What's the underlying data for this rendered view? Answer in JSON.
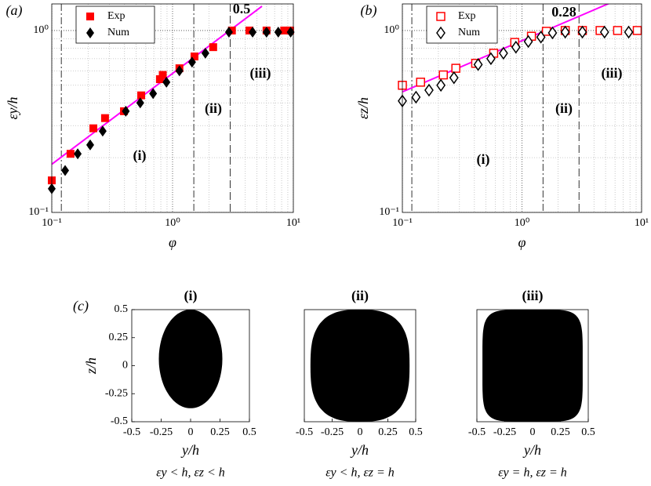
{
  "chart_data": [
    {
      "type": "scatter",
      "panel_label": "(a)",
      "xlabel": "φ",
      "ylabel": "εy/h",
      "xlog": true,
      "ylog": true,
      "grid": true,
      "legend": "upper left",
      "xlim": [
        0.1,
        10
      ],
      "ylim": [
        0.1,
        1.4
      ],
      "xticks": [
        {
          "value": 0.1,
          "label": "10⁻¹"
        },
        {
          "value": 1,
          "label": "10⁰"
        },
        {
          "value": 10,
          "label": "10¹"
        }
      ],
      "yticks": [
        {
          "value": 0.1,
          "label": "10⁻¹"
        },
        {
          "value": 1,
          "label": "10⁰"
        }
      ],
      "xminor": [
        0.2,
        0.3,
        0.4,
        0.5,
        0.6,
        0.7,
        0.8,
        0.9,
        2,
        3,
        4,
        5,
        6,
        7,
        8,
        9
      ],
      "yminor": [
        0.2,
        0.3,
        0.4,
        0.5,
        0.6,
        0.7,
        0.8,
        0.9
      ],
      "series": [
        {
          "name": "Exp",
          "color": "#ff0000",
          "marker": "square",
          "filled": true,
          "x": [
            0.1,
            0.143,
            0.221,
            0.276,
            0.396,
            0.55,
            0.786,
            0.83,
            1.14,
            1.52,
            2.17,
            3.1,
            4.33,
            6.0,
            8.4,
            9.4
          ],
          "values": [
            0.15,
            0.21,
            0.29,
            0.33,
            0.36,
            0.44,
            0.54,
            0.57,
            0.62,
            0.72,
            0.81,
            1.0,
            1.0,
            1.0,
            1.0,
            1.0
          ]
        },
        {
          "name": "Num",
          "color": "#000000",
          "marker": "diamond",
          "filled": true,
          "x": [
            0.1,
            0.129,
            0.164,
            0.208,
            0.264,
            0.41,
            0.54,
            0.69,
            0.89,
            1.14,
            1.45,
            1.87,
            2.93,
            4.6,
            6.0,
            7.5,
            9.5
          ],
          "values": [
            0.135,
            0.17,
            0.21,
            0.235,
            0.28,
            0.36,
            0.4,
            0.45,
            0.52,
            0.6,
            0.67,
            0.75,
            0.98,
            0.98,
            0.98,
            0.98,
            0.98
          ]
        }
      ],
      "fit": {
        "color": "#ff00ff",
        "x": [
          0.1,
          5.5
        ],
        "values": [
          0.184,
          1.36
        ]
      },
      "vlines": [
        {
          "value": 0.12,
          "style": "dashdot"
        },
        {
          "value": 1.5,
          "style": "dashdot"
        },
        {
          "value": 3,
          "style": "dashed"
        }
      ],
      "annotations": [
        "(i)",
        "(ii)",
        "(iii)",
        "0.5"
      ]
    },
    {
      "type": "scatter",
      "panel_label": "(b)",
      "xlabel": "φ",
      "ylabel": "εz/h",
      "xlog": true,
      "ylog": true,
      "grid": true,
      "legend": "upper left",
      "xlim": [
        0.1,
        10
      ],
      "ylim": [
        0.1,
        1.4
      ],
      "xticks": [
        {
          "value": 0.1,
          "label": "10⁻¹"
        },
        {
          "value": 1,
          "label": "10⁰"
        },
        {
          "value": 10,
          "label": "10¹"
        }
      ],
      "yticks": [
        {
          "value": 0.1,
          "label": "10⁻¹"
        },
        {
          "value": 1,
          "label": "10⁰"
        }
      ],
      "xminor": [
        0.2,
        0.3,
        0.4,
        0.5,
        0.6,
        0.7,
        0.8,
        0.9,
        2,
        3,
        4,
        5,
        6,
        7,
        8,
        9
      ],
      "yminor": [
        0.2,
        0.3,
        0.4,
        0.5,
        0.6,
        0.7,
        0.8,
        0.9
      ],
      "series": [
        {
          "name": "Exp",
          "color": "#ff0000",
          "marker": "square",
          "filled": false,
          "x": [
            0.1,
            0.142,
            0.22,
            0.28,
            0.41,
            0.58,
            0.87,
            1.2,
            1.6,
            2.3,
            3.2,
            4.5,
            6.3,
            9.2
          ],
          "values": [
            0.5,
            0.52,
            0.57,
            0.62,
            0.66,
            0.75,
            0.86,
            0.93,
            0.99,
            1.0,
            1.0,
            1.0,
            1.0,
            1.0
          ]
        },
        {
          "name": "Num",
          "color": "#000000",
          "marker": "diamond",
          "filled": false,
          "x": [
            0.1,
            0.13,
            0.167,
            0.21,
            0.27,
            0.43,
            0.55,
            0.7,
            0.89,
            1.13,
            1.44,
            1.8,
            2.3,
            3.2,
            4.9,
            7.8
          ],
          "values": [
            0.41,
            0.43,
            0.47,
            0.5,
            0.55,
            0.65,
            0.7,
            0.75,
            0.81,
            0.87,
            0.92,
            0.97,
            0.98,
            0.98,
            0.98,
            0.98
          ]
        }
      ],
      "fit": {
        "color": "#ff00ff",
        "x": [
          0.1,
          5.5
        ],
        "values": [
          0.46,
          1.42
        ]
      },
      "vlines": [
        {
          "value": 0.12,
          "style": "dashdot"
        },
        {
          "value": 1.5,
          "style": "dashdot"
        },
        {
          "value": 3,
          "style": "dashed"
        }
      ],
      "annotations": [
        "(i)",
        "(ii)",
        "(iii)",
        "0.28"
      ]
    },
    {
      "type": "image",
      "panel_label": "(c)",
      "title": "(i)",
      "xlabel": "y/h",
      "ylabel": "z/h",
      "caption": "εy < h, εz < h",
      "xlim": [
        -0.5,
        0.5
      ],
      "ylim": [
        -0.5,
        0.5
      ],
      "xticks": [
        -0.5,
        -0.25,
        0,
        0.25,
        0.5
      ],
      "yticks": [
        -0.5,
        -0.25,
        0,
        0.25,
        0.5
      ]
    },
    {
      "type": "image",
      "title": "(ii)",
      "xlabel": "y/h",
      "caption": "εy < h, εz = h",
      "xlim": [
        -0.5,
        0.5
      ],
      "ylim": [
        -0.5,
        0.5
      ],
      "xticks": [
        -0.5,
        -0.25,
        0,
        0.25,
        0.5
      ]
    },
    {
      "type": "image",
      "title": "(iii)",
      "xlabel": "y/h",
      "caption": "εy = h, εz = h",
      "xlim": [
        -0.5,
        0.5
      ],
      "ylim": [
        -0.5,
        0.5
      ],
      "xticks": [
        -0.5,
        -0.25,
        0,
        0.25,
        0.5
      ]
    }
  ]
}
